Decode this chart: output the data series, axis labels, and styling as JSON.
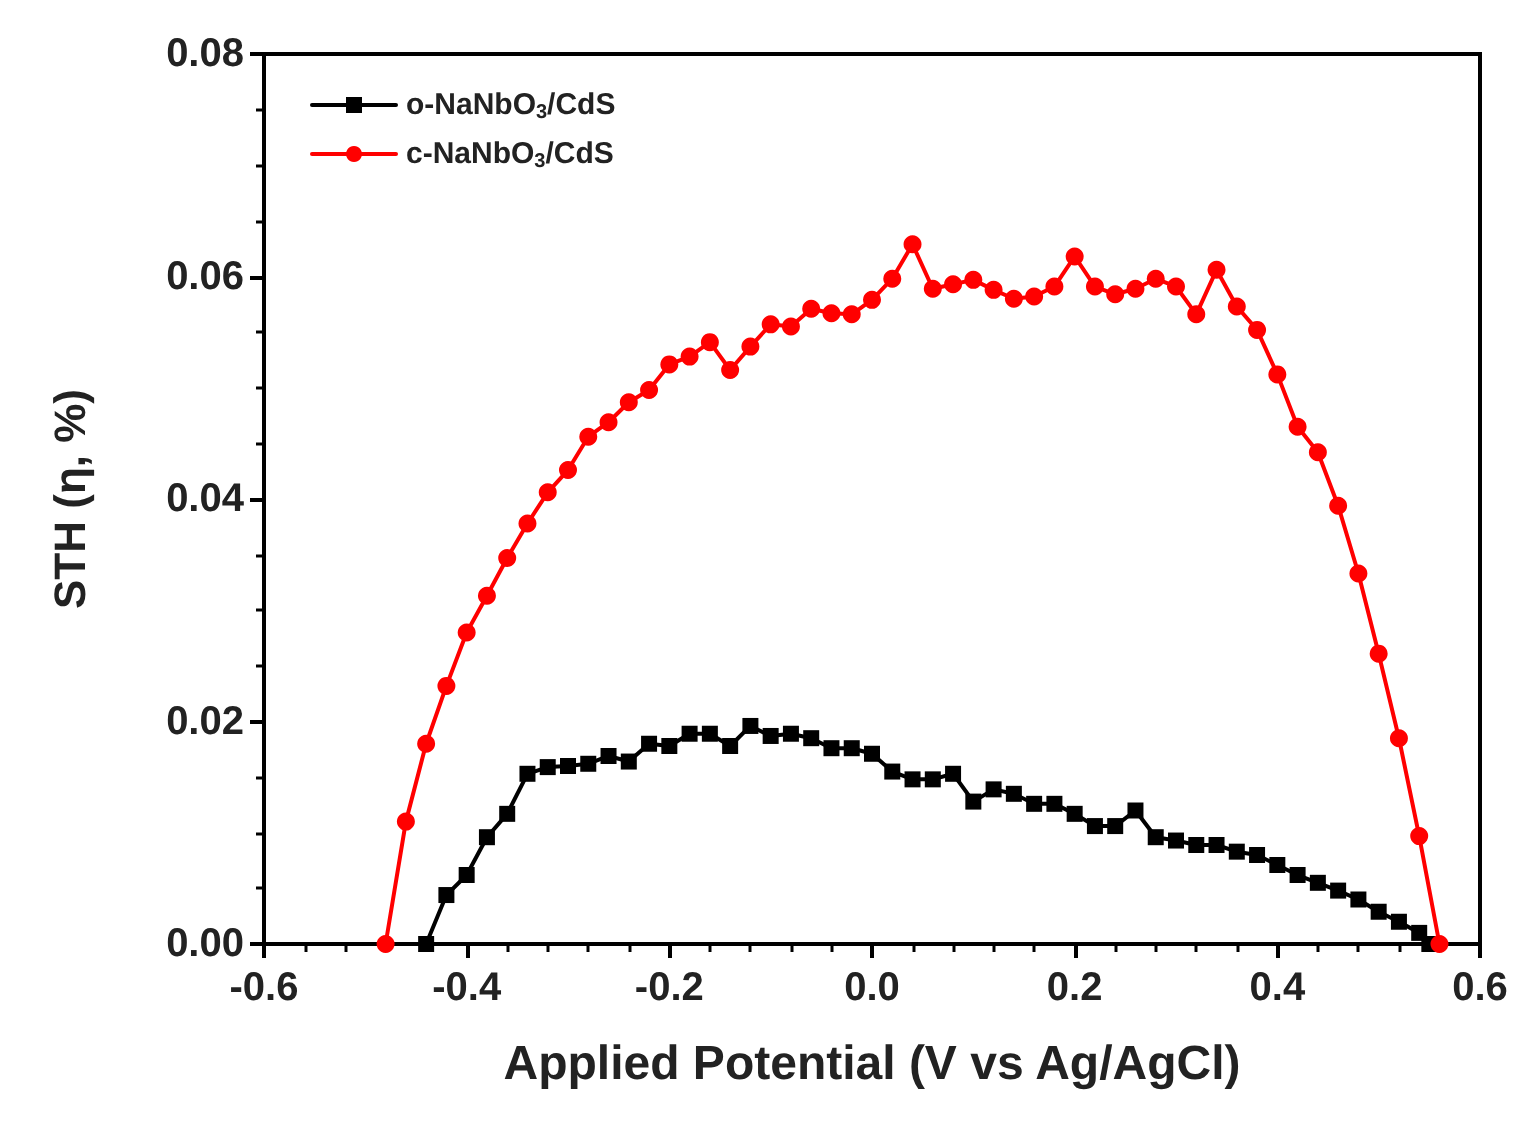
{
  "chart_data": {
    "type": "line",
    "xlabel": "Applied Potential (V vs Ag/AgCl)",
    "ylabel": "STH (η, %)",
    "xlim": [
      -0.6,
      0.6
    ],
    "ylim": [
      0,
      0.08
    ],
    "xticks": [
      {
        "value": -0.6,
        "label": "-0.6"
      },
      {
        "value": -0.4,
        "label": "-0.4"
      },
      {
        "value": -0.2,
        "label": "-0.2"
      },
      {
        "value": 0,
        "label": "0.0"
      },
      {
        "value": 0.2,
        "label": "0.2"
      },
      {
        "value": 0.4,
        "label": "0.4"
      },
      {
        "value": 0.6,
        "label": "0.6"
      }
    ],
    "yticks": [
      {
        "value": 0,
        "label": "0.00"
      },
      {
        "value": 0.02,
        "label": "0.02"
      },
      {
        "value": 0.04,
        "label": "0.04"
      },
      {
        "value": 0.06,
        "label": "0.06"
      },
      {
        "value": 0.08,
        "label": "0.08"
      }
    ],
    "grid": false,
    "legend": "top left",
    "line_style": "solid",
    "series": [
      {
        "name": "o-NaNbO$_{3}$/CdS",
        "color": "#000000",
        "marker": "square",
        "x": [
          -0.44,
          -0.42,
          -0.4,
          -0.38,
          -0.36,
          -0.34,
          -0.32,
          -0.3,
          -0.28,
          -0.26,
          -0.24,
          -0.22,
          -0.2,
          -0.18,
          -0.16,
          -0.14,
          -0.12,
          -0.1,
          -0.08,
          -0.06,
          -0.04,
          -0.02,
          0,
          0.02,
          0.04,
          0.06,
          0.08,
          0.1,
          0.12,
          0.14,
          0.16,
          0.18,
          0.2,
          0.22,
          0.24,
          0.26,
          0.28,
          0.3,
          0.32,
          0.34,
          0.36,
          0.38,
          0.4,
          0.42,
          0.44,
          0.46,
          0.48,
          0.5,
          0.52,
          0.54,
          0.55
        ],
        "values": [
          0,
          0.0044,
          0.0062,
          0.0096,
          0.0117,
          0.0153,
          0.0159,
          0.016,
          0.0162,
          0.0169,
          0.0164,
          0.018,
          0.0178,
          0.0189,
          0.0189,
          0.0178,
          0.0196,
          0.0187,
          0.0189,
          0.0185,
          0.0176,
          0.0176,
          0.0171,
          0.0155,
          0.0148,
          0.0148,
          0.0153,
          0.0128,
          0.0139,
          0.0135,
          0.0126,
          0.0126,
          0.0117,
          0.0106,
          0.0106,
          0.012,
          0.0096,
          0.0093,
          0.0089,
          0.0089,
          0.0083,
          0.008,
          0.0071,
          0.0062,
          0.0055,
          0.0048,
          0.004,
          0.0029,
          0.002,
          0.001,
          0
        ]
      },
      {
        "name": "c-NaNbO$_{3}$/CdS",
        "color": "#ff0000",
        "marker": "circle",
        "x": [
          -0.48,
          -0.46,
          -0.44,
          -0.42,
          -0.4,
          -0.38,
          -0.36,
          -0.34,
          -0.32,
          -0.3,
          -0.28,
          -0.26,
          -0.24,
          -0.22,
          -0.2,
          -0.18,
          -0.16,
          -0.14,
          -0.12,
          -0.1,
          -0.08,
          -0.06,
          -0.04,
          -0.02,
          0,
          0.02,
          0.04,
          0.06,
          0.08,
          0.1,
          0.12,
          0.14,
          0.16,
          0.18,
          0.2,
          0.22,
          0.24,
          0.26,
          0.28,
          0.3,
          0.32,
          0.34,
          0.36,
          0.38,
          0.4,
          0.42,
          0.44,
          0.46,
          0.48,
          0.5,
          0.52,
          0.54,
          0.56
        ],
        "values": [
          0,
          0.011,
          0.018,
          0.0232,
          0.028,
          0.0313,
          0.0347,
          0.0378,
          0.0406,
          0.0426,
          0.0456,
          0.0469,
          0.0487,
          0.0498,
          0.0521,
          0.0528,
          0.0541,
          0.0516,
          0.0537,
          0.0557,
          0.0555,
          0.0571,
          0.0567,
          0.0566,
          0.0579,
          0.0598,
          0.0629,
          0.0589,
          0.0593,
          0.0597,
          0.0588,
          0.058,
          0.0582,
          0.0591,
          0.0618,
          0.0591,
          0.0584,
          0.0589,
          0.0598,
          0.0591,
          0.0566,
          0.0606,
          0.0573,
          0.0552,
          0.0512,
          0.0465,
          0.0442,
          0.0394,
          0.0333,
          0.0261,
          0.0185,
          0.0097,
          0
        ]
      }
    ]
  }
}
